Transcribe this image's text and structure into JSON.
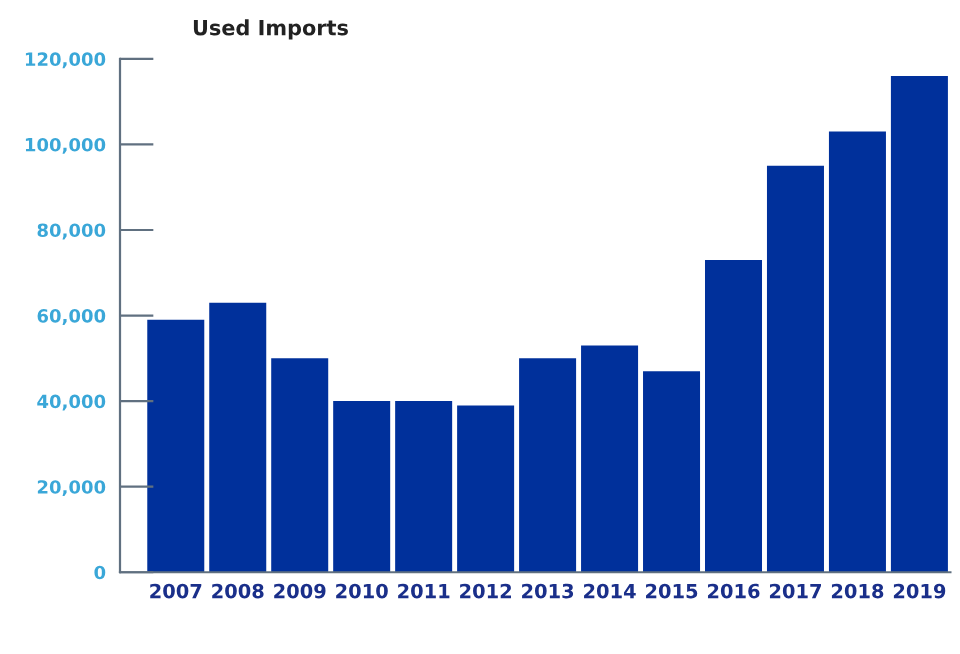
{
  "chart_data": {
    "type": "bar",
    "title": "Used Imports",
    "categories": [
      "2007",
      "2008",
      "2009",
      "2010",
      "2011",
      "2012",
      "2013",
      "2014",
      "2015",
      "2016",
      "2017",
      "2018",
      "2019"
    ],
    "values": [
      59000,
      63000,
      50000,
      40000,
      40000,
      39000,
      50000,
      53000,
      47000,
      73000,
      95000,
      103000,
      116000
    ],
    "color": "#00309b",
    "ylim": [
      0,
      120000
    ],
    "yticks": [
      {
        "value": 0,
        "label": "0"
      },
      {
        "value": 20000,
        "label": "20,000"
      },
      {
        "value": 40000,
        "label": "40,000"
      },
      {
        "value": 60000,
        "label": "60,000"
      },
      {
        "value": 80000,
        "label": "80,000"
      },
      {
        "value": 100000,
        "label": "100,000"
      },
      {
        "value": 120000,
        "label": "120,000"
      }
    ],
    "grid": false
  }
}
